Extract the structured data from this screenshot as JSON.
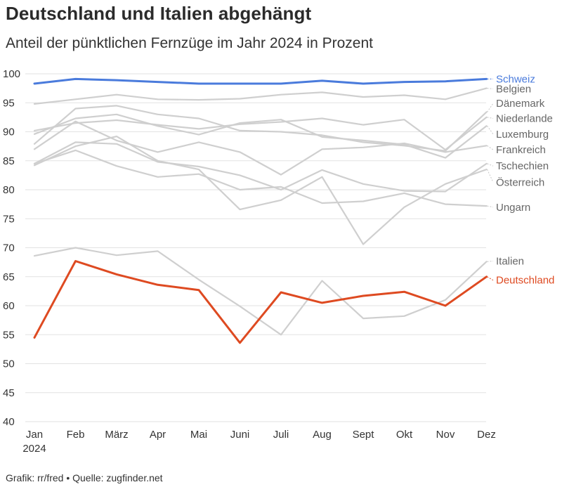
{
  "header": {
    "title": "Deutschland und Italien abgehängt",
    "subtitle": "Anteil der pünktlichen Fernzüge im Jahr 2024 in Prozent"
  },
  "footer": {
    "credit": "Grafik: rr/fred • Quelle: zugfinder.net"
  },
  "colors": {
    "grid": "#e2e2e2",
    "gray_line": "#cfcfcf",
    "gray_label": "#666666",
    "schweiz": "#4a7bdc",
    "deutschland": "#de4a21"
  },
  "chart_data": {
    "type": "line",
    "title": "Deutschland und Italien abgehängt",
    "subtitle": "Anteil der pünktlichen Fernzüge im Jahr 2024 in Prozent",
    "xlabel": "",
    "ylabel": "",
    "grid": true,
    "legend": "direct labels right",
    "ylim": [
      40,
      100
    ],
    "yticks": [
      40,
      45,
      50,
      55,
      60,
      65,
      70,
      75,
      80,
      85,
      90,
      95,
      100
    ],
    "categories": [
      "Jan",
      "Feb",
      "März",
      "Apr",
      "Mai",
      "Juni",
      "Juli",
      "Aug",
      "Sept",
      "Okt",
      "Nov",
      "Dez"
    ],
    "year_label": "2024",
    "series": [
      {
        "name": "Schweiz",
        "highlight": "blue",
        "values": [
          98.3,
          99.1,
          98.9,
          98.6,
          98.3,
          98.3,
          98.3,
          98.8,
          98.3,
          98.6,
          98.7,
          99.1
        ]
      },
      {
        "name": "Belgien",
        "values": [
          94.8,
          95.6,
          96.4,
          95.6,
          95.5,
          95.7,
          96.4,
          96.8,
          96.0,
          96.3,
          95.6,
          97.5
        ]
      },
      {
        "name": "Dänemark",
        "values": [
          87.9,
          94.0,
          94.5,
          93.0,
          92.3,
          90.2,
          90.0,
          89.4,
          88.2,
          87.6,
          86.7,
          93.4
        ]
      },
      {
        "name": "Niederlande",
        "values": [
          90.2,
          91.5,
          92.0,
          91.2,
          90.5,
          91.3,
          91.7,
          92.3,
          91.2,
          92.1,
          86.9,
          92.5
        ]
      },
      {
        "name": "Luxemburg",
        "values": [
          89.6,
          92.3,
          93.0,
          91.0,
          89.5,
          91.5,
          92.1,
          89.1,
          88.5,
          87.8,
          85.5,
          91.0
        ]
      },
      {
        "name": "Frankreich",
        "values": [
          87.0,
          91.8,
          88.5,
          86.5,
          88.2,
          86.5,
          82.6,
          87.0,
          87.3,
          88.0,
          86.5,
          87.6
        ]
      },
      {
        "name": "Tschechien",
        "values": [
          84.5,
          88.2,
          87.9,
          84.8,
          84.0,
          82.5,
          80.0,
          83.4,
          81.0,
          79.8,
          79.7,
          84.5
        ]
      },
      {
        "name": "Österreich",
        "values": [
          84.2,
          87.5,
          89.2,
          85.0,
          83.5,
          76.6,
          78.2,
          82.2,
          70.6,
          77.0,
          81.0,
          83.5
        ]
      },
      {
        "name": "Ungarn",
        "values": [
          84.5,
          86.8,
          84.1,
          82.2,
          82.7,
          80.0,
          80.5,
          77.7,
          78.0,
          79.4,
          77.5,
          77.2
        ]
      },
      {
        "name": "Italien",
        "values": [
          68.6,
          70.0,
          68.7,
          69.4,
          64.5,
          59.9,
          55.0,
          64.3,
          57.8,
          58.2,
          61.0,
          67.6
        ]
      },
      {
        "name": "Deutschland",
        "highlight": "red",
        "values": [
          54.5,
          67.7,
          65.4,
          63.6,
          62.7,
          53.6,
          62.3,
          60.5,
          61.7,
          62.4,
          60.0,
          65.0
        ]
      }
    ],
    "series_labels": [
      {
        "name": "Schweiz",
        "value": 99.1
      },
      {
        "name": "Belgien",
        "value": 97.4
      },
      {
        "name": "Dänemark",
        "value": 94.9
      },
      {
        "name": "Niederlande",
        "value": 92.3
      },
      {
        "name": "Luxemburg",
        "value": 89.6
      },
      {
        "name": "Frankreich",
        "value": 86.9
      },
      {
        "name": "Tschechien",
        "value": 84.1
      },
      {
        "name": "Österreich",
        "value": 81.3
      },
      {
        "name": "Ungarn",
        "value": 77.0
      },
      {
        "name": "Italien",
        "value": 67.7
      },
      {
        "name": "Deutschland",
        "value": 64.4
      }
    ]
  }
}
